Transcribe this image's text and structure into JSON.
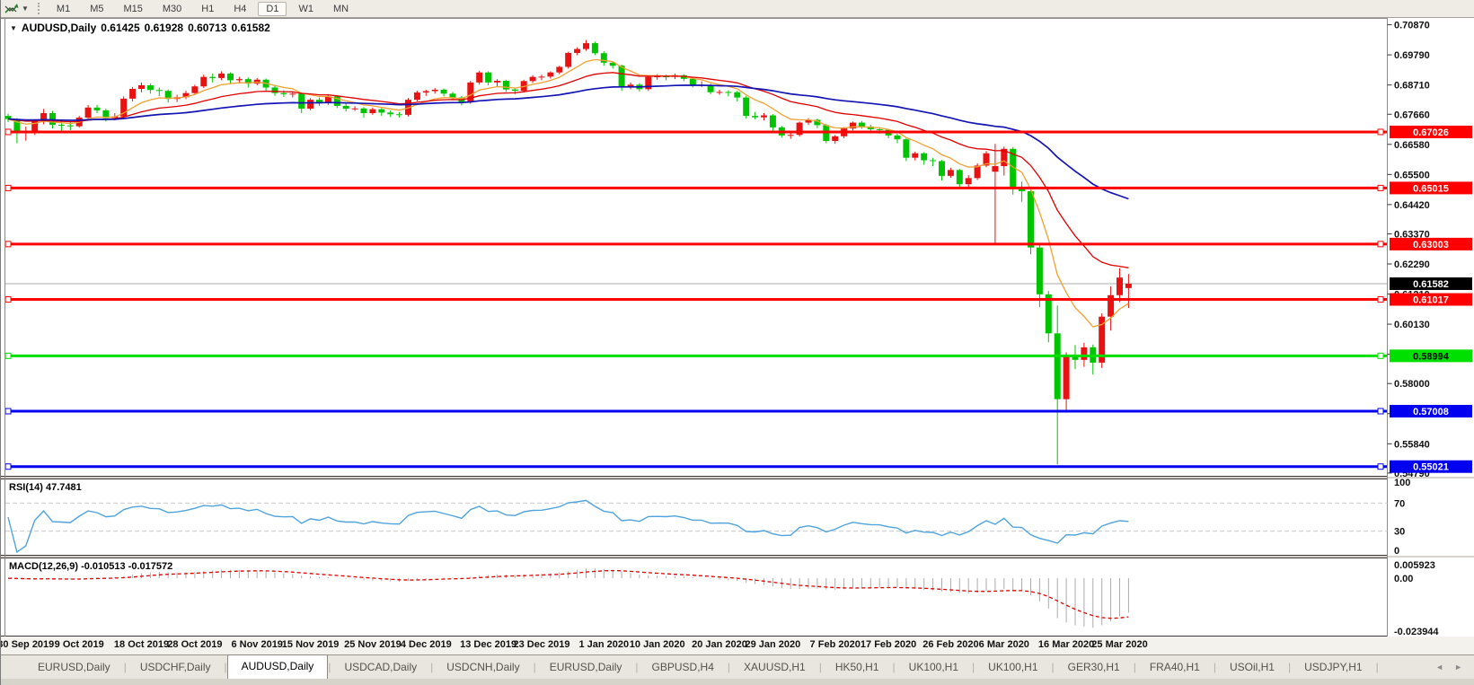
{
  "toolbar": {
    "timeframes": [
      "M1",
      "M5",
      "M15",
      "M30",
      "H1",
      "H4",
      "D1",
      "W1",
      "MN"
    ],
    "active": "D1"
  },
  "chart": {
    "symbol": "AUDUSD,Daily",
    "open": "0.61425",
    "high": "0.61928",
    "low": "0.60713",
    "close": "0.61582",
    "dropdown_glyph": "▼"
  },
  "indicators": {
    "rsi_label": "RSI(14) 47.7481",
    "macd_label": "MACD(12,26,9) -0.010513 -0.017572",
    "rsi_levels": [
      "100",
      "70",
      "30",
      "0"
    ],
    "rsi_level_values": [
      100,
      70,
      30,
      0
    ],
    "macd_levels": [
      "0.005923",
      "0.00",
      "-0.023944"
    ],
    "macd_level_values": [
      0.005923,
      0.0,
      -0.023944
    ]
  },
  "price_axis": {
    "labels": [
      "0.70870",
      "0.69790",
      "0.68710",
      "0.67660",
      "0.66580",
      "0.65500",
      "0.64420",
      "0.63370",
      "0.62290",
      "0.61210",
      "0.60130",
      "0.59050",
      "0.58000",
      "0.56920",
      "0.55840",
      "0.54790"
    ],
    "values": [
      0.7087,
      0.6979,
      0.6871,
      0.6766,
      0.6658,
      0.655,
      0.6442,
      0.6337,
      0.6229,
      0.6121,
      0.6013,
      0.5905,
      0.58,
      0.5692,
      0.5584,
      0.5479
    ]
  },
  "chart_data": {
    "type": "candlestick",
    "symbol": "AUDUSD",
    "timeframe": "Daily",
    "up_color": "#E81212",
    "down_color": "#00C400",
    "ohlc": [
      [
        0.676,
        0.6768,
        0.6738,
        0.6749
      ],
      [
        0.6749,
        0.6752,
        0.6662,
        0.67
      ],
      [
        0.67,
        0.6722,
        0.6671,
        0.6705
      ],
      [
        0.6705,
        0.6748,
        0.6692,
        0.6741
      ],
      [
        0.6741,
        0.6785,
        0.673,
        0.677
      ],
      [
        0.677,
        0.6778,
        0.6715,
        0.6728
      ],
      [
        0.6728,
        0.6742,
        0.6705,
        0.6726
      ],
      [
        0.6726,
        0.6739,
        0.6709,
        0.6723
      ],
      [
        0.6723,
        0.676,
        0.6718,
        0.6754
      ],
      [
        0.6754,
        0.6799,
        0.6748,
        0.679
      ],
      [
        0.679,
        0.68,
        0.677,
        0.678
      ],
      [
        0.678,
        0.6786,
        0.674,
        0.6752
      ],
      [
        0.6752,
        0.677,
        0.6744,
        0.6758
      ],
      [
        0.6758,
        0.683,
        0.6752,
        0.6822
      ],
      [
        0.6822,
        0.6864,
        0.6812,
        0.6857
      ],
      [
        0.6857,
        0.688,
        0.6845,
        0.687
      ],
      [
        0.687,
        0.6876,
        0.684,
        0.6853
      ],
      [
        0.6853,
        0.6862,
        0.6831,
        0.685
      ],
      [
        0.685,
        0.6855,
        0.6808,
        0.6821
      ],
      [
        0.6821,
        0.6836,
        0.681,
        0.6827
      ],
      [
        0.6827,
        0.685,
        0.682,
        0.6842
      ],
      [
        0.6842,
        0.6872,
        0.6835,
        0.6866
      ],
      [
        0.6866,
        0.6908,
        0.686,
        0.69
      ],
      [
        0.69,
        0.6912,
        0.688,
        0.6896
      ],
      [
        0.6896,
        0.692,
        0.6888,
        0.6912
      ],
      [
        0.6912,
        0.6916,
        0.6878,
        0.6888
      ],
      [
        0.6888,
        0.69,
        0.6876,
        0.6892
      ],
      [
        0.6892,
        0.6898,
        0.6862,
        0.6876
      ],
      [
        0.6876,
        0.6896,
        0.687,
        0.689
      ],
      [
        0.689,
        0.6894,
        0.685,
        0.6862
      ],
      [
        0.6862,
        0.687,
        0.6832,
        0.6842
      ],
      [
        0.6842,
        0.6852,
        0.6828,
        0.6838
      ],
      [
        0.6838,
        0.6848,
        0.6826,
        0.684
      ],
      [
        0.684,
        0.6844,
        0.677,
        0.6786
      ],
      [
        0.6786,
        0.6824,
        0.678,
        0.6818
      ],
      [
        0.6818,
        0.6826,
        0.6796,
        0.6806
      ],
      [
        0.6806,
        0.6838,
        0.68,
        0.683
      ],
      [
        0.683,
        0.6834,
        0.6788,
        0.6796
      ],
      [
        0.6796,
        0.6804,
        0.6776,
        0.6786
      ],
      [
        0.6786,
        0.6795,
        0.6778,
        0.6787
      ],
      [
        0.6787,
        0.6792,
        0.6754,
        0.677
      ],
      [
        0.677,
        0.679,
        0.6764,
        0.6784
      ],
      [
        0.6784,
        0.6788,
        0.676,
        0.6772
      ],
      [
        0.6772,
        0.678,
        0.6756,
        0.6766
      ],
      [
        0.6766,
        0.6774,
        0.6754,
        0.6764
      ],
      [
        0.6764,
        0.6824,
        0.6758,
        0.6818
      ],
      [
        0.6818,
        0.685,
        0.6812,
        0.6844
      ],
      [
        0.6844,
        0.6854,
        0.6832,
        0.6849
      ],
      [
        0.6849,
        0.686,
        0.684,
        0.6854
      ],
      [
        0.6854,
        0.6858,
        0.683,
        0.684
      ],
      [
        0.684,
        0.6846,
        0.6816,
        0.6826
      ],
      [
        0.6826,
        0.6832,
        0.6798,
        0.681
      ],
      [
        0.681,
        0.6886,
        0.6804,
        0.688
      ],
      [
        0.688,
        0.6922,
        0.6872,
        0.6916
      ],
      [
        0.6916,
        0.692,
        0.687,
        0.688
      ],
      [
        0.688,
        0.6892,
        0.6866,
        0.6886
      ],
      [
        0.6886,
        0.689,
        0.6846,
        0.6855
      ],
      [
        0.6855,
        0.6862,
        0.6838,
        0.685
      ],
      [
        0.685,
        0.689,
        0.6844,
        0.6885
      ],
      [
        0.6885,
        0.6906,
        0.6878,
        0.69
      ],
      [
        0.69,
        0.6908,
        0.6888,
        0.6901
      ],
      [
        0.6901,
        0.692,
        0.6894,
        0.6916
      ],
      [
        0.6916,
        0.694,
        0.691,
        0.6936
      ],
      [
        0.6936,
        0.699,
        0.693,
        0.6986
      ],
      [
        0.6986,
        0.7006,
        0.6978,
        0.7
      ],
      [
        0.7,
        0.7032,
        0.6994,
        0.7021
      ],
      [
        0.7021,
        0.7026,
        0.6978,
        0.6985
      ],
      [
        0.6985,
        0.6992,
        0.694,
        0.6951
      ],
      [
        0.6951,
        0.6956,
        0.693,
        0.694
      ],
      [
        0.694,
        0.6944,
        0.685,
        0.6865
      ],
      [
        0.6865,
        0.688,
        0.6856,
        0.6872
      ],
      [
        0.6872,
        0.6878,
        0.6848,
        0.6856
      ],
      [
        0.6856,
        0.6904,
        0.685,
        0.69
      ],
      [
        0.69,
        0.691,
        0.689,
        0.6902
      ],
      [
        0.6902,
        0.6908,
        0.6888,
        0.69
      ],
      [
        0.69,
        0.6912,
        0.6892,
        0.6906
      ],
      [
        0.6906,
        0.691,
        0.6885,
        0.6893
      ],
      [
        0.6893,
        0.6898,
        0.6862,
        0.6871
      ],
      [
        0.6871,
        0.6884,
        0.6864,
        0.6871
      ],
      [
        0.6871,
        0.6876,
        0.6838,
        0.6845
      ],
      [
        0.6845,
        0.6854,
        0.6836,
        0.6846
      ],
      [
        0.6846,
        0.6852,
        0.683,
        0.6845
      ],
      [
        0.6845,
        0.685,
        0.6812,
        0.6826
      ],
      [
        0.6826,
        0.6832,
        0.675,
        0.676
      ],
      [
        0.676,
        0.6774,
        0.6748,
        0.6755
      ],
      [
        0.6755,
        0.677,
        0.6744,
        0.6762
      ],
      [
        0.6762,
        0.6766,
        0.6706,
        0.6719
      ],
      [
        0.6719,
        0.6724,
        0.6682,
        0.669
      ],
      [
        0.669,
        0.6704,
        0.6678,
        0.6692
      ],
      [
        0.6692,
        0.674,
        0.6686,
        0.6736
      ],
      [
        0.6736,
        0.6752,
        0.6728,
        0.6746
      ],
      [
        0.6746,
        0.675,
        0.6716,
        0.6727
      ],
      [
        0.6727,
        0.6732,
        0.6662,
        0.667
      ],
      [
        0.667,
        0.6692,
        0.666,
        0.6687
      ],
      [
        0.6687,
        0.672,
        0.668,
        0.6715
      ],
      [
        0.6715,
        0.674,
        0.6708,
        0.6736
      ],
      [
        0.6736,
        0.6742,
        0.6714,
        0.6722
      ],
      [
        0.6722,
        0.6728,
        0.67,
        0.6712
      ],
      [
        0.6712,
        0.672,
        0.6696,
        0.671
      ],
      [
        0.671,
        0.6714,
        0.668,
        0.669
      ],
      [
        0.669,
        0.6696,
        0.6662,
        0.6676
      ],
      [
        0.6676,
        0.668,
        0.6598,
        0.661
      ],
      [
        0.661,
        0.6632,
        0.66,
        0.6626
      ],
      [
        0.6626,
        0.663,
        0.6585,
        0.6601
      ],
      [
        0.6601,
        0.661,
        0.658,
        0.6598
      ],
      [
        0.6598,
        0.6602,
        0.6528,
        0.6545
      ],
      [
        0.6545,
        0.6574,
        0.6538,
        0.6566
      ],
      [
        0.6566,
        0.657,
        0.65,
        0.6515
      ],
      [
        0.6515,
        0.6548,
        0.6506,
        0.6537
      ],
      [
        0.6537,
        0.659,
        0.653,
        0.6582
      ],
      [
        0.6582,
        0.6634,
        0.6576,
        0.6626
      ],
      [
        0.656,
        0.666,
        0.6303,
        0.658
      ],
      [
        0.658,
        0.665,
        0.6546,
        0.6642
      ],
      [
        0.6642,
        0.6648,
        0.6478,
        0.65
      ],
      [
        0.65,
        0.6524,
        0.6452,
        0.649
      ],
      [
        0.649,
        0.6496,
        0.6264,
        0.6288
      ],
      [
        0.6288,
        0.6302,
        0.6074,
        0.612
      ],
      [
        0.612,
        0.6132,
        0.5948,
        0.598
      ],
      [
        0.598,
        0.608,
        0.551,
        0.5744
      ],
      [
        0.5744,
        0.5912,
        0.5702,
        0.59
      ],
      [
        0.59,
        0.5938,
        0.5852,
        0.5885
      ],
      [
        0.5885,
        0.5946,
        0.586,
        0.593
      ],
      [
        0.593,
        0.594,
        0.5832,
        0.5875
      ],
      [
        0.5875,
        0.6052,
        0.5856,
        0.604
      ],
      [
        0.604,
        0.6148,
        0.599,
        0.6117
      ],
      [
        0.6117,
        0.6214,
        0.6092,
        0.618
      ],
      [
        0.61425,
        0.61928,
        0.60713,
        0.61582
      ]
    ],
    "dates": [
      [
        "30 Sep 2019",
        2
      ],
      [
        "9 Oct 2019",
        8
      ],
      [
        "18 Oct 2019",
        15
      ],
      [
        "28 Oct 2019",
        21
      ],
      [
        "6 Nov 2019",
        28
      ],
      [
        "15 Nov 2019",
        34
      ],
      [
        "25 Nov 2019",
        41
      ],
      [
        "4 Dec 2019",
        47
      ],
      [
        "13 Dec 2019",
        54
      ],
      [
        "23 Dec 2019",
        60
      ],
      [
        "1 Jan 2020",
        67
      ],
      [
        "10 Jan 2020",
        73
      ],
      [
        "20 Jan 2020",
        80
      ],
      [
        "29 Jan 2020",
        86
      ],
      [
        "7 Feb 2020",
        93
      ],
      [
        "17 Feb 2020",
        99
      ],
      [
        "26 Feb 2020",
        106
      ],
      [
        "6 Mar 2020",
        112
      ],
      [
        "16 Mar 2020",
        119
      ],
      [
        "25 Mar 2020",
        125
      ]
    ],
    "moving_averages": [
      {
        "name": "fast-ma",
        "period": 8,
        "color": "#F0A030"
      },
      {
        "name": "medium-ma",
        "period": 21,
        "color": "#E00000"
      },
      {
        "name": "slow-ma",
        "period": 55,
        "color": "#1414B4"
      }
    ],
    "hlines": [
      {
        "label": "0.67026",
        "value": 0.67026,
        "color": "#FF0000",
        "text": "#FFFFFF"
      },
      {
        "label": "0.65015",
        "value": 0.65015,
        "color": "#FF0000",
        "text": "#FFFFFF"
      },
      {
        "label": "0.63003",
        "value": 0.63003,
        "color": "#FF0000",
        "text": "#FFFFFF"
      },
      {
        "label": "0.61017",
        "value": 0.61017,
        "color": "#FF0000",
        "text": "#FFFFFF"
      },
      {
        "label": "0.58994",
        "value": 0.58994,
        "color": "#00E000",
        "text": "#000000"
      },
      {
        "label": "0.57008",
        "value": 0.57008,
        "color": "#0000F0",
        "text": "#FFFFFF"
      },
      {
        "label": "0.55021",
        "value": 0.55021,
        "color": "#0000F0",
        "text": "#FFFFFF"
      }
    ],
    "price_line": {
      "label": "0.61582",
      "value": 0.61582,
      "line_color": "#ABABAB",
      "badge_color": "#000000",
      "text": "#FFFFFF"
    },
    "rsi": {
      "period": 14,
      "color": "#4FA3DC"
    },
    "macd": {
      "fast": 12,
      "slow": 26,
      "signal": 9,
      "hist_color": "#ABABAB",
      "signal_color": "#E00000"
    }
  },
  "tabs": {
    "items": [
      {
        "label": "EURUSD,Daily",
        "active": false
      },
      {
        "label": "USDCHF,Daily",
        "active": false
      },
      {
        "label": "AUDUSD,Daily",
        "active": true
      },
      {
        "label": "USDCAD,Daily",
        "active": false
      },
      {
        "label": "USDCNH,Daily",
        "active": false
      },
      {
        "label": "EURUSD,Daily",
        "active": false
      },
      {
        "label": "GBPUSD,H4",
        "active": false
      },
      {
        "label": "XAUUSD,H1",
        "active": false
      },
      {
        "label": "HK50,H1",
        "active": false
      },
      {
        "label": "UK100,H1",
        "active": false
      },
      {
        "label": "UK100,H1",
        "active": false
      },
      {
        "label": "GER30,H1",
        "active": false
      },
      {
        "label": "FRA40,H1",
        "active": false
      },
      {
        "label": "USOil,H1",
        "active": false
      },
      {
        "label": "USDJPY,H1",
        "active": false
      }
    ],
    "scroll_left": "◄",
    "scroll_right": "►"
  }
}
